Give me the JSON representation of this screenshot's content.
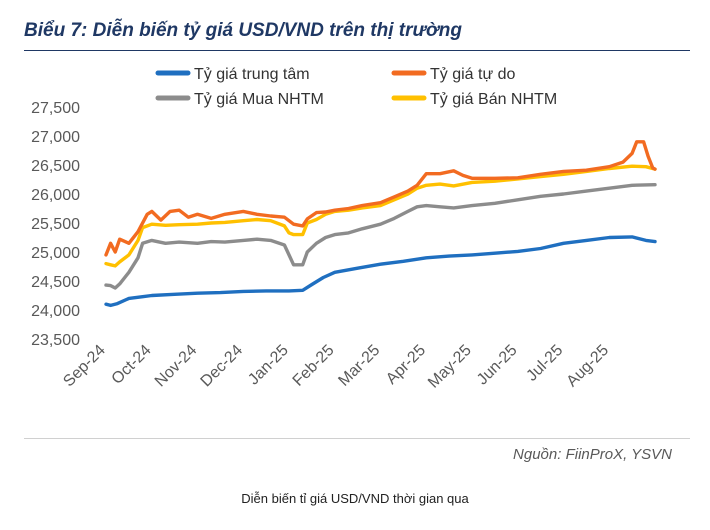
{
  "title": "Biểu 7: Diễn biến tỷ giá USD/VND trên thị trường",
  "source": "Nguồn: FiinProX, YSVN",
  "caption": "Diễn biến tỉ giá USD/VND thời gian qua",
  "chart_data": {
    "type": "line",
    "y_ticks": [
      "27,500",
      "27,000",
      "26,500",
      "26,000",
      "25,500",
      "25,000",
      "24,500",
      "24,000",
      "23,500"
    ],
    "ylim": [
      23500,
      27500
    ],
    "x_tick_labels": [
      "Sep-24",
      "Oct-24",
      "Nov-24",
      "Dec-24",
      "Jan-25",
      "Feb-25",
      "Mar-25",
      "Apr-25",
      "May-25",
      "Jun-25",
      "Jul-25",
      "Aug-25"
    ],
    "grid": false,
    "legend_position": "top",
    "series": [
      {
        "name": "Tỷ giá trung tâm",
        "color": "#1f6fc0",
        "points": [
          [
            0.0,
            24100
          ],
          [
            0.1,
            24080
          ],
          [
            0.25,
            24110
          ],
          [
            0.5,
            24200
          ],
          [
            0.8,
            24230
          ],
          [
            1.0,
            24250
          ],
          [
            1.5,
            24270
          ],
          [
            2.0,
            24290
          ],
          [
            2.5,
            24300
          ],
          [
            3.0,
            24320
          ],
          [
            3.5,
            24330
          ],
          [
            4.0,
            24330
          ],
          [
            4.3,
            24340
          ],
          [
            4.5,
            24440
          ],
          [
            4.75,
            24560
          ],
          [
            5.0,
            24650
          ],
          [
            5.5,
            24720
          ],
          [
            6.0,
            24790
          ],
          [
            6.5,
            24840
          ],
          [
            7.0,
            24900
          ],
          [
            7.5,
            24930
          ],
          [
            8.0,
            24950
          ],
          [
            8.5,
            24980
          ],
          [
            9.0,
            25010
          ],
          [
            9.5,
            25060
          ],
          [
            10.0,
            25150
          ],
          [
            10.5,
            25200
          ],
          [
            11.0,
            25250
          ],
          [
            11.5,
            25260
          ],
          [
            11.8,
            25200
          ],
          [
            12.0,
            25180
          ]
        ]
      },
      {
        "name": "Tỷ giá tự do",
        "color": "#f26b21",
        "points": [
          [
            0.0,
            24950
          ],
          [
            0.1,
            25150
          ],
          [
            0.2,
            25000
          ],
          [
            0.3,
            25220
          ],
          [
            0.5,
            25150
          ],
          [
            0.7,
            25350
          ],
          [
            0.9,
            25650
          ],
          [
            1.0,
            25700
          ],
          [
            1.2,
            25550
          ],
          [
            1.4,
            25700
          ],
          [
            1.6,
            25720
          ],
          [
            1.8,
            25600
          ],
          [
            2.0,
            25650
          ],
          [
            2.3,
            25580
          ],
          [
            2.6,
            25650
          ],
          [
            3.0,
            25700
          ],
          [
            3.3,
            25650
          ],
          [
            3.6,
            25620
          ],
          [
            3.9,
            25600
          ],
          [
            4.1,
            25480
          ],
          [
            4.3,
            25450
          ],
          [
            4.4,
            25570
          ],
          [
            4.6,
            25680
          ],
          [
            4.8,
            25690
          ],
          [
            5.0,
            25720
          ],
          [
            5.3,
            25750
          ],
          [
            5.6,
            25800
          ],
          [
            6.0,
            25850
          ],
          [
            6.3,
            25950
          ],
          [
            6.6,
            26050
          ],
          [
            6.8,
            26150
          ],
          [
            7.0,
            26350
          ],
          [
            7.3,
            26350
          ],
          [
            7.6,
            26400
          ],
          [
            7.8,
            26320
          ],
          [
            8.0,
            26270
          ],
          [
            8.5,
            26270
          ],
          [
            9.0,
            26280
          ],
          [
            9.5,
            26340
          ],
          [
            10.0,
            26390
          ],
          [
            10.5,
            26410
          ],
          [
            11.0,
            26470
          ],
          [
            11.3,
            26550
          ],
          [
            11.5,
            26700
          ],
          [
            11.6,
            26900
          ],
          [
            11.75,
            26900
          ],
          [
            11.85,
            26650
          ],
          [
            11.95,
            26450
          ],
          [
            12.0,
            26430
          ]
        ]
      },
      {
        "name": "Tỷ giá Mua NHTM",
        "color": "#8c8c8c",
        "points": [
          [
            0.0,
            24430
          ],
          [
            0.1,
            24420
          ],
          [
            0.2,
            24380
          ],
          [
            0.3,
            24450
          ],
          [
            0.5,
            24650
          ],
          [
            0.7,
            24900
          ],
          [
            0.8,
            25150
          ],
          [
            1.0,
            25200
          ],
          [
            1.3,
            25150
          ],
          [
            1.6,
            25170
          ],
          [
            2.0,
            25150
          ],
          [
            2.3,
            25180
          ],
          [
            2.6,
            25170
          ],
          [
            3.0,
            25200
          ],
          [
            3.3,
            25220
          ],
          [
            3.6,
            25200
          ],
          [
            3.9,
            25120
          ],
          [
            4.0,
            24950
          ],
          [
            4.1,
            24780
          ],
          [
            4.3,
            24780
          ],
          [
            4.4,
            25000
          ],
          [
            4.6,
            25150
          ],
          [
            4.8,
            25250
          ],
          [
            5.0,
            25300
          ],
          [
            5.3,
            25330
          ],
          [
            5.6,
            25400
          ],
          [
            6.0,
            25480
          ],
          [
            6.3,
            25580
          ],
          [
            6.6,
            25700
          ],
          [
            6.8,
            25780
          ],
          [
            7.0,
            25800
          ],
          [
            7.3,
            25780
          ],
          [
            7.6,
            25760
          ],
          [
            8.0,
            25800
          ],
          [
            8.5,
            25840
          ],
          [
            9.0,
            25900
          ],
          [
            9.5,
            25960
          ],
          [
            10.0,
            26000
          ],
          [
            10.5,
            26050
          ],
          [
            11.0,
            26100
          ],
          [
            11.5,
            26150
          ],
          [
            12.0,
            26160
          ]
        ]
      },
      {
        "name": "Tỷ giá Bán NHTM",
        "color": "#ffc000",
        "points": [
          [
            0.0,
            24800
          ],
          [
            0.1,
            24780
          ],
          [
            0.2,
            24760
          ],
          [
            0.3,
            24830
          ],
          [
            0.5,
            24950
          ],
          [
            0.7,
            25200
          ],
          [
            0.8,
            25420
          ],
          [
            1.0,
            25480
          ],
          [
            1.3,
            25460
          ],
          [
            1.6,
            25470
          ],
          [
            2.0,
            25480
          ],
          [
            2.3,
            25500
          ],
          [
            2.6,
            25510
          ],
          [
            3.0,
            25540
          ],
          [
            3.3,
            25560
          ],
          [
            3.6,
            25540
          ],
          [
            3.9,
            25450
          ],
          [
            4.0,
            25330
          ],
          [
            4.1,
            25300
          ],
          [
            4.3,
            25300
          ],
          [
            4.4,
            25500
          ],
          [
            4.6,
            25560
          ],
          [
            4.8,
            25650
          ],
          [
            5.0,
            25700
          ],
          [
            5.3,
            25720
          ],
          [
            5.6,
            25760
          ],
          [
            6.0,
            25800
          ],
          [
            6.3,
            25900
          ],
          [
            6.6,
            26000
          ],
          [
            6.8,
            26100
          ],
          [
            7.0,
            26150
          ],
          [
            7.3,
            26170
          ],
          [
            7.6,
            26140
          ],
          [
            8.0,
            26200
          ],
          [
            8.5,
            26220
          ],
          [
            9.0,
            26260
          ],
          [
            9.5,
            26300
          ],
          [
            10.0,
            26340
          ],
          [
            10.5,
            26390
          ],
          [
            11.0,
            26440
          ],
          [
            11.5,
            26480
          ],
          [
            11.8,
            26470
          ],
          [
            12.0,
            26430
          ]
        ]
      }
    ]
  }
}
